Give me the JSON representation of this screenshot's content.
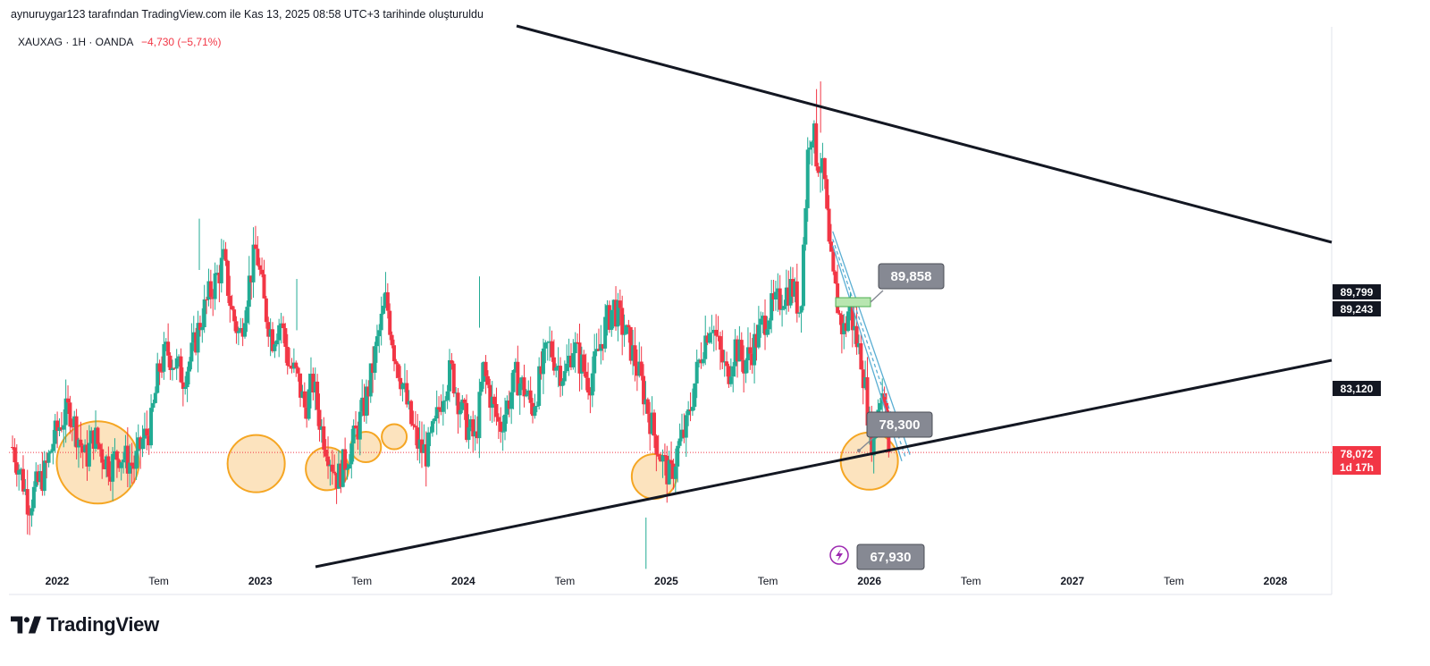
{
  "header": {
    "attribution": "aynuruygar123 tarafından TradingView.com ile Kas 13, 2025 08:58 UTC+3 tarihinde oluşturuldu",
    "symbol_info": "XAUXAG · 1H · OANDA",
    "change": "−4,730 (−5,71%)"
  },
  "logo": {
    "text": "TradingView",
    "icon": "tradingview-logo-icon"
  },
  "colors": {
    "up": "#22ab94",
    "down": "#f23645",
    "trendline": "#131722",
    "channel": "#5aaed3",
    "circle_stroke": "#f5a623",
    "circle_fill": "#fbd9a8",
    "callout_bg": "#868993",
    "rect_fill": "#b8e6b0",
    "rect_stroke": "#4caf50",
    "dark_tag": "#131722",
    "red_tag": "#f23645",
    "event_icon": "#9c27b0"
  },
  "price_tags": [
    {
      "value": "89,799",
      "color": "dark"
    },
    {
      "value": "89,243",
      "color": "dark"
    },
    {
      "value": "83,120",
      "color": "dark"
    },
    {
      "value": "78,072",
      "color": "red"
    },
    {
      "value": "1d 17h",
      "color": "red"
    }
  ],
  "callouts": [
    "89,858",
    "78,300",
    "67,930"
  ],
  "chart_data": {
    "type": "candlestick",
    "symbol": "XAUXAG",
    "interval": "1H",
    "exchange": "OANDA",
    "last_price": 78.072,
    "yaxis": {
      "range": [
        69,
        111.5
      ],
      "ticks": [
        "70,000",
        "72,500",
        "75,000",
        "77,500",
        "80,000",
        "82,500",
        "85,000",
        "87,500",
        "90,000",
        "92,500",
        "95,000",
        "97,500",
        "100,000",
        "102,500",
        "105,000",
        "107,500",
        "110,000"
      ]
    },
    "xaxis": {
      "ticks": [
        {
          "label": "2022",
          "t": 2022.0,
          "year": true
        },
        {
          "label": "Tem",
          "t": 2022.5,
          "year": false
        },
        {
          "label": "2023",
          "t": 2023.0,
          "year": true
        },
        {
          "label": "Tem",
          "t": 2023.5,
          "year": false
        },
        {
          "label": "2024",
          "t": 2024.0,
          "year": true
        },
        {
          "label": "Tem",
          "t": 2024.5,
          "year": false
        },
        {
          "label": "2025",
          "t": 2025.0,
          "year": true
        },
        {
          "label": "Tem",
          "t": 2025.5,
          "year": false
        },
        {
          "label": "2026",
          "t": 2026.0,
          "year": true
        },
        {
          "label": "Tem",
          "t": 2026.5,
          "year": false
        },
        {
          "label": "2027",
          "t": 2027.0,
          "year": true
        },
        {
          "label": "Tem",
          "t": 2027.5,
          "year": false
        },
        {
          "label": "2028",
          "t": 2028.0,
          "year": true
        }
      ]
    },
    "closes": [
      [
        2021.78,
        78.5
      ],
      [
        2021.82,
        76.5
      ],
      [
        2021.86,
        74.0
      ],
      [
        2021.9,
        75.5
      ],
      [
        2021.94,
        76.5
      ],
      [
        2021.98,
        79.0
      ],
      [
        2022.02,
        80.5
      ],
      [
        2022.06,
        81.5
      ],
      [
        2022.1,
        79.5
      ],
      [
        2022.14,
        77.5
      ],
      [
        2022.18,
        79.5
      ],
      [
        2022.22,
        78.0
      ],
      [
        2022.26,
        77.0
      ],
      [
        2022.3,
        78.0
      ],
      [
        2022.34,
        77.5
      ],
      [
        2022.38,
        77.0
      ],
      [
        2022.42,
        79.0
      ],
      [
        2022.46,
        80.0
      ],
      [
        2022.5,
        84.5
      ],
      [
        2022.54,
        86.0
      ],
      [
        2022.58,
        85.0
      ],
      [
        2022.62,
        84.0
      ],
      [
        2022.66,
        85.5
      ],
      [
        2022.7,
        88.0
      ],
      [
        2022.74,
        90.0
      ],
      [
        2022.78,
        91.5
      ],
      [
        2022.82,
        93.0
      ],
      [
        2022.86,
        89.0
      ],
      [
        2022.9,
        87.0
      ],
      [
        2022.94,
        91.0
      ],
      [
        2022.98,
        94.0
      ],
      [
        2023.02,
        89.5
      ],
      [
        2023.06,
        87.0
      ],
      [
        2023.1,
        88.5
      ],
      [
        2023.14,
        85.0
      ],
      [
        2023.18,
        84.0
      ],
      [
        2023.22,
        81.5
      ],
      [
        2023.26,
        83.5
      ],
      [
        2023.3,
        80.0
      ],
      [
        2023.34,
        78.0
      ],
      [
        2023.38,
        76.0
      ],
      [
        2023.42,
        77.5
      ],
      [
        2023.46,
        79.0
      ],
      [
        2023.5,
        81.0
      ],
      [
        2023.54,
        83.5
      ],
      [
        2023.58,
        87.0
      ],
      [
        2023.62,
        90.0
      ],
      [
        2023.66,
        86.0
      ],
      [
        2023.7,
        83.5
      ],
      [
        2023.74,
        80.5
      ],
      [
        2023.78,
        78.5
      ],
      [
        2023.82,
        78.0
      ],
      [
        2023.86,
        80.0
      ],
      [
        2023.9,
        83.0
      ],
      [
        2023.94,
        84.5
      ],
      [
        2023.98,
        82.0
      ],
      [
        2024.02,
        80.0
      ],
      [
        2024.06,
        79.0
      ],
      [
        2024.1,
        84.5
      ],
      [
        2024.14,
        82.0
      ],
      [
        2024.18,
        80.0
      ],
      [
        2024.22,
        82.0
      ],
      [
        2024.26,
        84.0
      ],
      [
        2024.3,
        83.0
      ],
      [
        2024.34,
        81.5
      ],
      [
        2024.38,
        84.0
      ],
      [
        2024.42,
        86.5
      ],
      [
        2024.46,
        85.0
      ],
      [
        2024.5,
        84.0
      ],
      [
        2024.54,
        86.5
      ],
      [
        2024.58,
        85.0
      ],
      [
        2024.62,
        83.5
      ],
      [
        2024.66,
        85.5
      ],
      [
        2024.7,
        88.0
      ],
      [
        2024.74,
        89.5
      ],
      [
        2024.78,
        88.0
      ],
      [
        2024.82,
        86.5
      ],
      [
        2024.86,
        84.5
      ],
      [
        2024.9,
        82.0
      ],
      [
        2024.94,
        79.5
      ],
      [
        2024.98,
        77.5
      ],
      [
        2025.02,
        76.0
      ],
      [
        2025.06,
        78.5
      ],
      [
        2025.1,
        80.0
      ],
      [
        2025.14,
        83.5
      ],
      [
        2025.18,
        86.5
      ],
      [
        2025.22,
        88.5
      ],
      [
        2025.26,
        86.0
      ],
      [
        2025.3,
        84.0
      ],
      [
        2025.34,
        86.5
      ],
      [
        2025.38,
        85.0
      ],
      [
        2025.42,
        86.0
      ],
      [
        2025.46,
        87.5
      ],
      [
        2025.5,
        89.0
      ],
      [
        2025.54,
        89.5
      ],
      [
        2025.58,
        90.5
      ],
      [
        2025.62,
        91.0
      ],
      [
        2025.66,
        89.0
      ],
      [
        2025.7,
        102.5
      ],
      [
        2025.72,
        103.5
      ],
      [
        2025.74,
        101.0
      ],
      [
        2025.76,
        100.5
      ],
      [
        2025.78,
        99.0
      ],
      [
        2025.8,
        94.0
      ],
      [
        2025.82,
        91.5
      ],
      [
        2025.84,
        90.0
      ],
      [
        2025.86,
        88.0
      ],
      [
        2025.88,
        87.5
      ],
      [
        2025.9,
        89.5
      ],
      [
        2025.92,
        88.0
      ],
      [
        2025.94,
        86.5
      ],
      [
        2025.96,
        85.5
      ],
      [
        2025.98,
        83.0
      ],
      [
        2026.0,
        80.0
      ],
      [
        2026.02,
        78.5
      ],
      [
        2026.04,
        81.5
      ],
      [
        2026.06,
        83.0
      ],
      [
        2026.08,
        82.5
      ],
      [
        2026.1,
        78.072
      ]
    ]
  }
}
